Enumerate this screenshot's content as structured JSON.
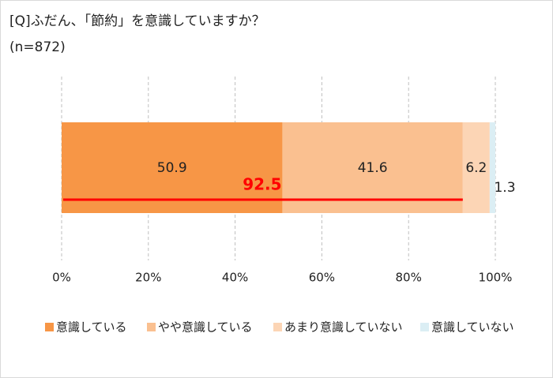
{
  "chart_data": {
    "type": "stacked-bar-horizontal",
    "title": "[Q]ふだん、「節約」を意識していますか？",
    "subtitle": "(n=872)",
    "categories": [
      null
    ],
    "series": [
      {
        "name": "意識している",
        "color": "#f79646",
        "values": [
          50.9
        ]
      },
      {
        "name": "やや意識している",
        "color": "#fac090",
        "values": [
          41.6
        ]
      },
      {
        "name": "あまり意識していない",
        "color": "#fcd5b5",
        "values": [
          6.2
        ]
      },
      {
        "name": "意識していない",
        "color": "#dbeef4",
        "values": [
          1.3
        ]
      }
    ],
    "total": {
      "value": 92.5,
      "color": "#ff0000"
    },
    "xlim": [
      0,
      100
    ],
    "xticks": [
      {
        "value": 0,
        "label": "0%"
      },
      {
        "value": 20,
        "label": "20%"
      },
      {
        "value": 40,
        "label": "40%"
      },
      {
        "value": 60,
        "label": "60%"
      },
      {
        "value": 80,
        "label": "80%"
      },
      {
        "value": 100,
        "label": "100%"
      }
    ],
    "grid": true,
    "legend": "bottom"
  }
}
